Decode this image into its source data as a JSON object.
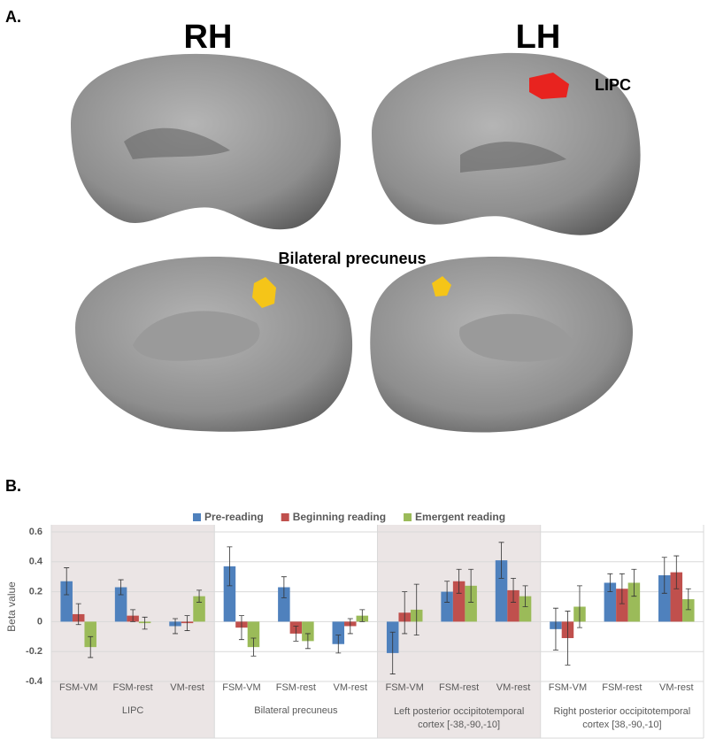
{
  "figure": {
    "panel_a": "A.",
    "panel_b": "B.",
    "rh": "RH",
    "lh": "LH",
    "lipc_label": "LIPC",
    "precuneus_label": "Bilateral precuneus"
  },
  "chart_data": {
    "type": "bar",
    "y_label": "Beta value",
    "categories": [
      "FSM-VM",
      "FSM-rest",
      "VM-rest",
      "FSM-VM",
      "FSM-rest",
      "VM-rest",
      "FSM-VM",
      "FSM-rest",
      "VM-rest",
      "FSM-VM",
      "FSM-rest",
      "VM-rest"
    ],
    "groups": [
      [
        "LIPC"
      ],
      [
        "Bilateral precuneus"
      ],
      [
        "Left posterior occipitotemporal",
        "cortex [-38,-90,-10]"
      ],
      [
        "Right posterior occipitotemporal",
        "cortex [38,-90,-10]"
      ]
    ],
    "shaded_groups": [
      true,
      false,
      true,
      false
    ],
    "series": [
      {
        "name": "Pre-reading",
        "color": "#4f81bd",
        "values": [
          0.27,
          0.23,
          -0.03,
          0.37,
          0.23,
          -0.15,
          -0.21,
          0.2,
          0.41,
          -0.05,
          0.26,
          0.31
        ],
        "errors": [
          0.09,
          0.05,
          0.05,
          0.13,
          0.07,
          0.06,
          0.14,
          0.07,
          0.12,
          0.14,
          0.06,
          0.12
        ]
      },
      {
        "name": "Beginning reading",
        "color": "#c0504d",
        "values": [
          0.05,
          0.04,
          -0.01,
          -0.04,
          -0.08,
          -0.03,
          0.06,
          0.27,
          0.21,
          -0.11,
          0.22,
          0.33
        ],
        "errors": [
          0.07,
          0.04,
          0.05,
          0.08,
          0.05,
          0.05,
          0.14,
          0.08,
          0.08,
          0.18,
          0.1,
          0.11
        ]
      },
      {
        "name": "Emergent reading",
        "color": "#9bbb59",
        "values": [
          -0.17,
          -0.01,
          0.17,
          -0.17,
          -0.13,
          0.04,
          0.08,
          0.24,
          0.17,
          0.1,
          0.26,
          0.15
        ],
        "errors": [
          0.07,
          0.04,
          0.04,
          0.06,
          0.05,
          0.04,
          0.17,
          0.11,
          0.07,
          0.14,
          0.09,
          0.07
        ]
      }
    ],
    "ylim": [
      -0.4,
      0.6
    ],
    "yticks": [
      -0.4,
      -0.2,
      0,
      0.2,
      0.4,
      0.6
    ],
    "grid": true,
    "legend": "top"
  }
}
